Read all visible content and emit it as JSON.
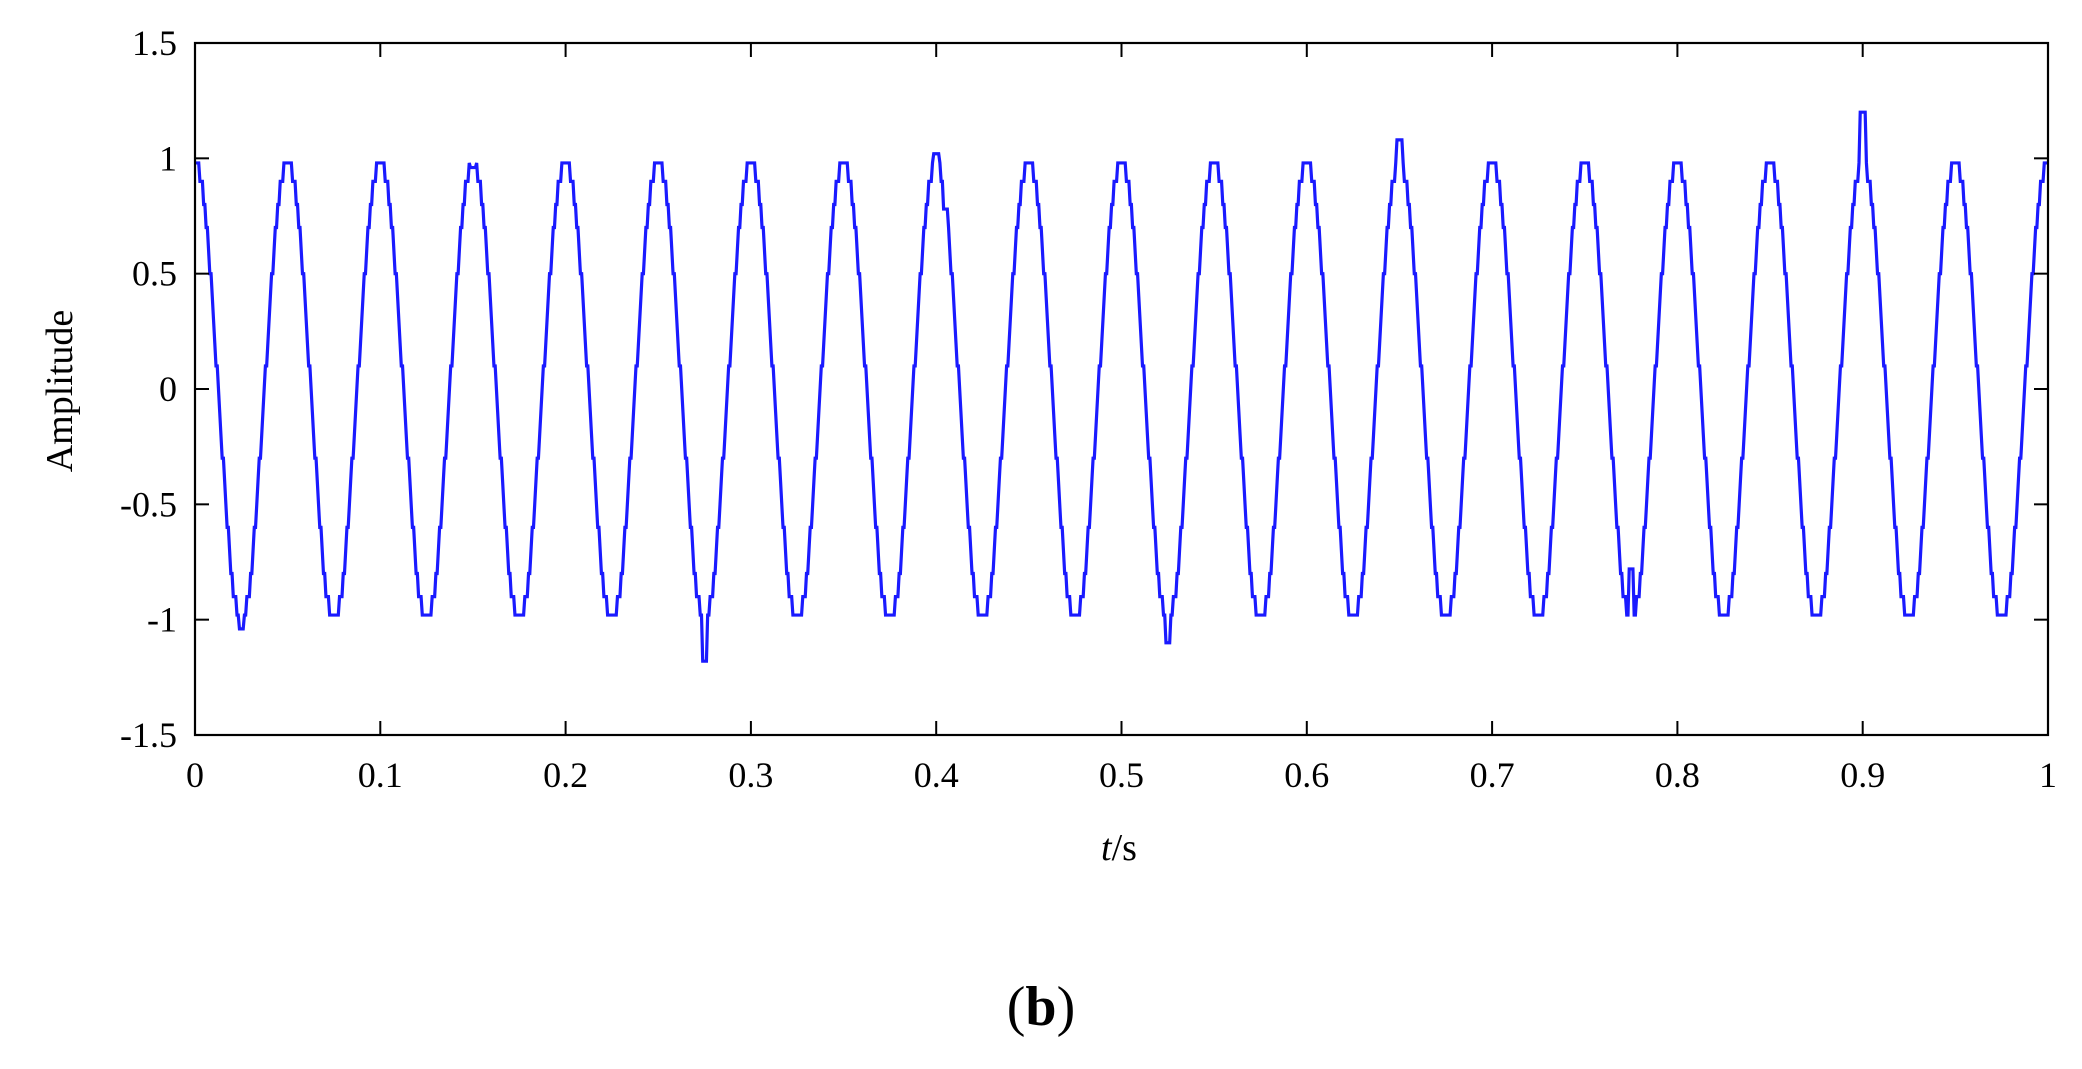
{
  "chart_data": {
    "type": "line",
    "title": "",
    "xlabel_italic": "t",
    "xlabel_unit": "/s",
    "ylabel": "Amplitude",
    "xlim": [
      0,
      1
    ],
    "ylim": [
      -1.5,
      1.5
    ],
    "x_ticks": [
      0,
      0.1,
      0.2,
      0.3,
      0.4,
      0.5,
      0.6,
      0.7,
      0.8,
      0.9,
      1
    ],
    "x_tick_labels": [
      "0",
      "0.1",
      "0.2",
      "0.3",
      "0.4",
      "0.5",
      "0.6",
      "0.7",
      "0.8",
      "0.9",
      "1"
    ],
    "y_ticks": [
      1.5,
      1,
      0.5,
      0,
      -0.5,
      -1,
      -1.5
    ],
    "y_tick_labels": [
      "1.5",
      "1",
      "0.5",
      "0",
      "-0.5",
      "-1",
      "-1.5"
    ],
    "grid": false,
    "series": [
      {
        "color": "#1a1aff",
        "signal": {
          "kind": "quantized-sine",
          "frequency_hz": 20,
          "amplitude": 1,
          "phase": "cosine",
          "quantization_step": 0.1,
          "clip": 0.98
        },
        "disturbances": [
          {
            "t": 0.025,
            "value": -1.04
          },
          {
            "t": 0.15,
            "value": 0.96
          },
          {
            "t": 0.275,
            "value": -1.18
          },
          {
            "t": 0.4,
            "value": 1.02
          },
          {
            "t": 0.405,
            "value": 0.78
          },
          {
            "t": 0.525,
            "value": -1.1
          },
          {
            "t": 0.65,
            "value": 1.08
          },
          {
            "t": 0.775,
            "value": -0.78
          },
          {
            "t": 0.9,
            "value": 1.2
          }
        ]
      }
    ]
  },
  "panel_label": {
    "open": "(",
    "letter": "b",
    "close": ")"
  }
}
